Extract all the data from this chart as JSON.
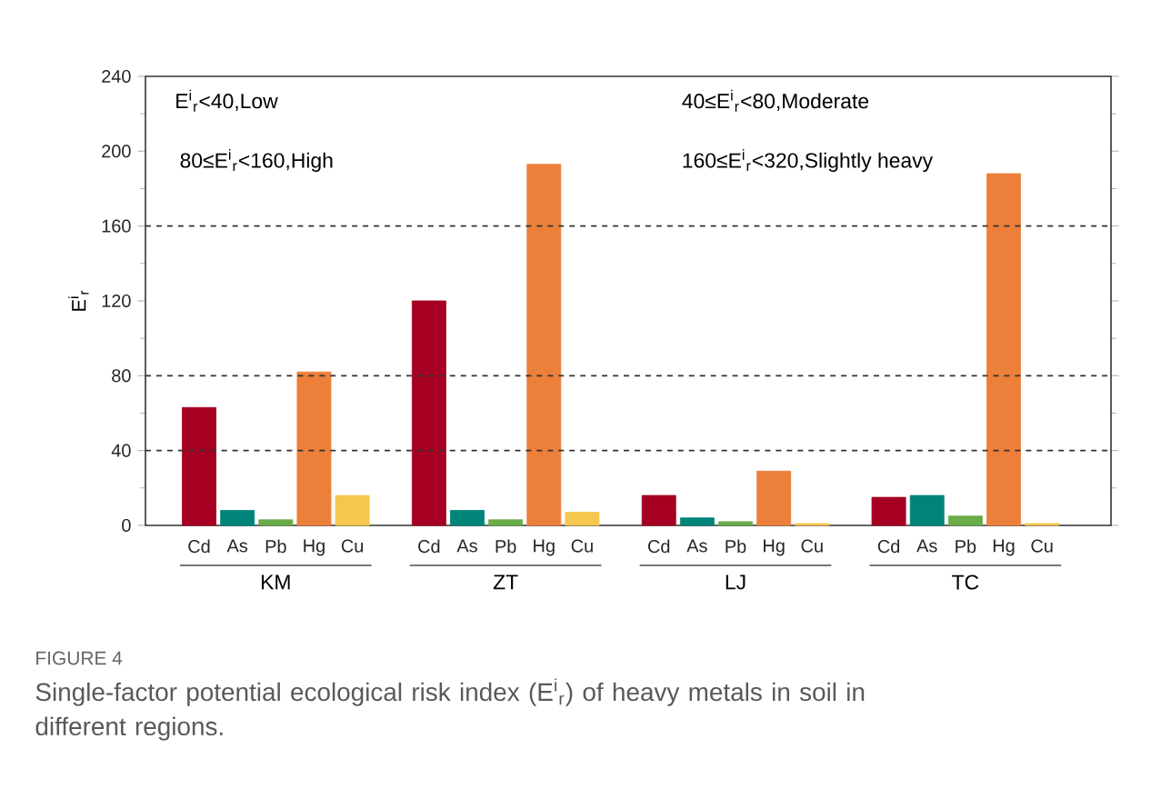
{
  "chart_data": {
    "type": "bar",
    "ylabel": "E$^{i}$$_{r}$",
    "categories": [
      "Cd",
      "As",
      "Pb",
      "Hg",
      "Cu",
      "Cd",
      "As",
      "Pb",
      "Hg",
      "Cu",
      "Cd",
      "As",
      "Pb",
      "Hg",
      "Cu",
      "Cd",
      "As",
      "Pb",
      "Hg",
      "Cu"
    ],
    "values": [
      63,
      8,
      3,
      82,
      16,
      120,
      8,
      3,
      193,
      7,
      16,
      4,
      2,
      29,
      1,
      15,
      16,
      5,
      188,
      1
    ],
    "colors": [
      "#a50021",
      "#00847a",
      "#6aab4a",
      "#ec7f3a",
      "#f5c74e",
      "#a50021",
      "#00847a",
      "#6aab4a",
      "#ec7f3a",
      "#f5c74e",
      "#a50021",
      "#00847a",
      "#6aab4a",
      "#ec7f3a",
      "#f5c74e",
      "#a50021",
      "#00847a",
      "#6aab4a",
      "#ec7f3a",
      "#f5c74e"
    ],
    "ylim": [
      0,
      240
    ],
    "yticks": [
      0,
      40,
      80,
      120,
      160,
      200,
      240
    ],
    "ref_lines": [
      {
        "axis": "y",
        "value": 40,
        "color": "#333333",
        "line_style": "dashed"
      },
      {
        "axis": "y",
        "value": 80,
        "color": "#333333",
        "line_style": "dashed"
      },
      {
        "axis": "y",
        "value": 160,
        "color": "#333333",
        "line_style": "dashed"
      }
    ],
    "annotations": [
      "E$^{i}$$_{r}$<40,Low",
      "80≤E$^{i}$$_{r}$<160,High",
      "40≤E$^{i}$$_{r}$<80,Moderate",
      "160≤E$^{i}$$_{r}$<320,Slightly heavy",
      "KM",
      "ZT",
      "LJ",
      "TC",
      "FIGURE 4",
      "Single-factor potential ecological risk index (E$^{i}$$_{r}$) of heavy metals in soil in different regions."
    ]
  }
}
